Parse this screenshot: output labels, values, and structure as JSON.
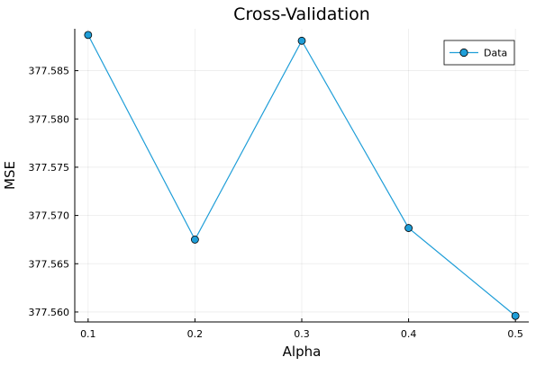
{
  "chart_data": {
    "type": "line",
    "title": "Cross-Validation",
    "xlabel": "Alpha",
    "ylabel": "MSE",
    "x": [
      0.1,
      0.2,
      0.3,
      0.4,
      0.5
    ],
    "series": [
      {
        "name": "Data",
        "values": [
          377.5887,
          377.5675,
          377.5881,
          377.5687,
          377.5596
        ],
        "color": "#1f9ed8"
      }
    ],
    "xticks": [
      "0.1",
      "0.2",
      "0.3",
      "0.4",
      "0.5"
    ],
    "xtick_values": [
      0.1,
      0.2,
      0.3,
      0.4,
      0.5
    ],
    "yticks": [
      "377.560",
      "377.565",
      "377.570",
      "377.575",
      "377.580",
      "377.585"
    ],
    "ytick_values": [
      377.56,
      377.565,
      377.57,
      377.575,
      377.58,
      377.585
    ],
    "xlim": [
      0.0875,
      0.5125
    ],
    "ylim": [
      377.55897,
      377.58934
    ],
    "grid": true,
    "legend_position": "top-right"
  }
}
